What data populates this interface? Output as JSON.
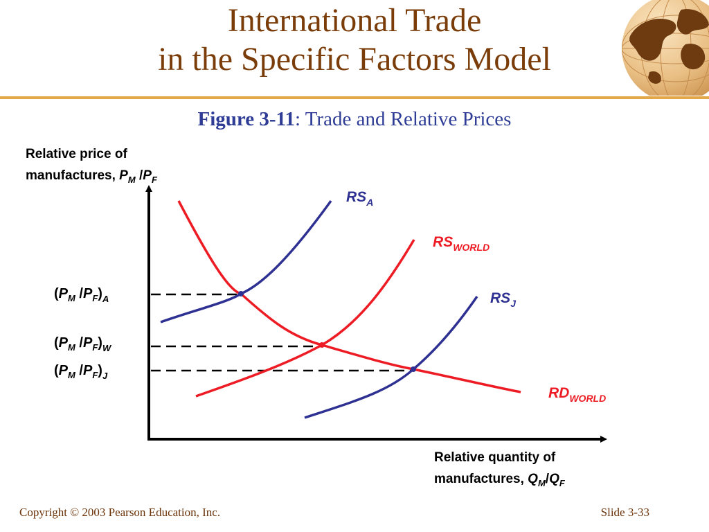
{
  "title": {
    "line1": "International Trade",
    "line2": "in the Specific Factors Model"
  },
  "figure_caption": {
    "label": "Figure 3-11",
    "separator": ":",
    "text": " Trade and Relative Prices"
  },
  "axes": {
    "y_label_line1": "Relative price of",
    "y_label_line2_prefix": "manufactures, ",
    "y_label_symbol": {
      "num": "P",
      "num_sub": "M",
      "slash": " /",
      "den": "P",
      "den_sub": "F"
    },
    "x_label_line1": "Relative quantity of",
    "x_label_line2_prefix": "manufactures, ",
    "x_label_symbol": {
      "num": "Q",
      "num_sub": "M",
      "slash": "/",
      "den": "Q",
      "den_sub": "F"
    }
  },
  "price_levels": [
    {
      "open": "(",
      "p1": "P",
      "p1_sub": "M",
      "slash": " /",
      "p2": "P",
      "p2_sub": "F",
      "close": ")",
      "sub": "A"
    },
    {
      "open": "(",
      "p1": "P",
      "p1_sub": "M",
      "slash": " /",
      "p2": "P",
      "p2_sub": "F",
      "close": ")",
      "sub": "W"
    },
    {
      "open": "(",
      "p1": "P",
      "p1_sub": "M",
      "slash": " /",
      "p2": "P",
      "p2_sub": "F",
      "close": ")",
      "sub": "J"
    }
  ],
  "curves": [
    {
      "base": "RS",
      "sub": "A",
      "color": "#2e3192"
    },
    {
      "base": "RS",
      "sub": "WORLD",
      "color": "#ed1c24"
    },
    {
      "base": "RS",
      "sub": "J",
      "color": "#2e3192"
    },
    {
      "base": "RD",
      "sub": "WORLD",
      "color": "#ed1c24"
    }
  ],
  "footer": {
    "copyright": "Copyright © 2003 Pearson Education, Inc.",
    "slide": "Slide 3-33"
  },
  "colors": {
    "title": "#7a3d0a",
    "accent_rule": "#e2a84a",
    "caption": "#2e3c96",
    "supply_blue": "#2e3192",
    "world_red": "#ed1c24"
  },
  "icons": [
    "globe-icon"
  ]
}
